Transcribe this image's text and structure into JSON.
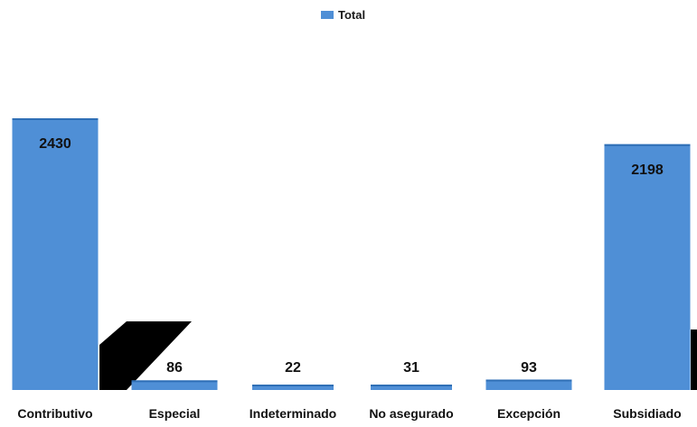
{
  "chart_data": {
    "type": "bar",
    "categories": [
      "Contributivo",
      "Especial",
      "Indeterminado",
      "No asegurado",
      "Excepción",
      "Subsidiado"
    ],
    "series": [
      {
        "name": "Total",
        "values": [
          2430,
          86,
          22,
          31,
          93,
          2198
        ]
      }
    ],
    "data_labels": [
      "2430",
      "86",
      "22",
      "31",
      "93",
      "2198"
    ],
    "ylim": [
      0,
      2430
    ],
    "grid": false,
    "legend_position": "top-center",
    "bar_color": "#4f8fd6",
    "bar_shade_color": "#2f6fb6",
    "shadow_color": "#000000"
  }
}
